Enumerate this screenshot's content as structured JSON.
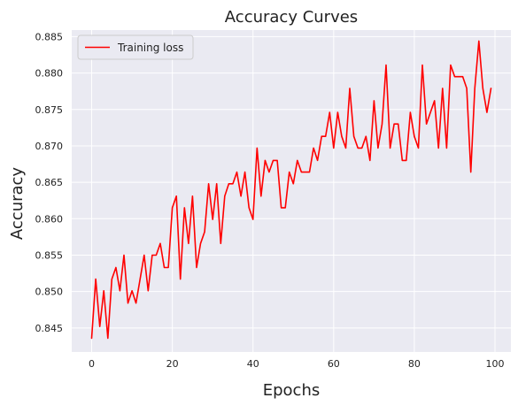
{
  "chart_data": {
    "type": "line",
    "title": "Accuracy Curves",
    "xlabel": "Epochs",
    "ylabel": "Accuracy",
    "xlim": [
      -4.95,
      103.95
    ],
    "ylim": [
      0.8417,
      0.8859
    ],
    "grid": true,
    "background": "#eaeaf2",
    "grid_color": "#ffffff",
    "legend_position": "top-left",
    "x_ticks": [
      0,
      20,
      40,
      60,
      80,
      100
    ],
    "x_tick_labels": [
      "0",
      "20",
      "40",
      "60",
      "80",
      "100"
    ],
    "y_ticks": [
      0.845,
      0.85,
      0.855,
      0.86,
      0.865,
      0.87,
      0.875,
      0.88,
      0.885
    ],
    "y_tick_labels": [
      "0.845",
      "0.850",
      "0.855",
      "0.860",
      "0.865",
      "0.870",
      "0.875",
      "0.880",
      "0.885"
    ],
    "series": [
      {
        "name": "Training loss",
        "color": "#ff0000",
        "x": [
          0,
          1,
          2,
          3,
          4,
          5,
          6,
          7,
          8,
          9,
          10,
          11,
          12,
          13,
          14,
          15,
          16,
          17,
          18,
          19,
          20,
          21,
          22,
          23,
          24,
          25,
          26,
          27,
          28,
          29,
          30,
          31,
          32,
          33,
          34,
          35,
          36,
          37,
          38,
          39,
          40,
          41,
          42,
          43,
          44,
          45,
          46,
          47,
          48,
          49,
          50,
          51,
          52,
          53,
          54,
          55,
          56,
          57,
          58,
          59,
          60,
          61,
          62,
          63,
          64,
          65,
          66,
          67,
          68,
          69,
          70,
          71,
          72,
          73,
          74,
          75,
          76,
          77,
          78,
          79,
          80,
          81,
          82,
          83,
          84,
          85,
          86,
          87,
          88,
          89,
          90,
          91,
          92,
          93,
          94,
          95,
          96,
          97,
          98,
          99
        ],
        "values": [
          0.8436,
          0.8517,
          0.8452,
          0.8501,
          0.8436,
          0.8517,
          0.8533,
          0.8501,
          0.855,
          0.8484,
          0.8501,
          0.8484,
          0.8517,
          0.855,
          0.8501,
          0.855,
          0.855,
          0.8566,
          0.8533,
          0.8533,
          0.8615,
          0.8631,
          0.8517,
          0.8615,
          0.8566,
          0.8631,
          0.8533,
          0.8566,
          0.8582,
          0.8648,
          0.8599,
          0.8648,
          0.8566,
          0.8631,
          0.8648,
          0.8648,
          0.8664,
          0.8631,
          0.8664,
          0.8615,
          0.8599,
          0.8697,
          0.8631,
          0.868,
          0.8664,
          0.868,
          0.868,
          0.8615,
          0.8615,
          0.8664,
          0.8648,
          0.868,
          0.8664,
          0.8664,
          0.8664,
          0.8697,
          0.868,
          0.8713,
          0.8713,
          0.8746,
          0.8697,
          0.8746,
          0.8713,
          0.8697,
          0.8779,
          0.8713,
          0.8697,
          0.8697,
          0.8713,
          0.868,
          0.8762,
          0.8697,
          0.873,
          0.8811,
          0.8697,
          0.873,
          0.873,
          0.868,
          0.868,
          0.8746,
          0.8713,
          0.8697,
          0.8811,
          0.873,
          0.8746,
          0.8762,
          0.8697,
          0.8779,
          0.8697,
          0.8811,
          0.8795,
          0.8795,
          0.8795,
          0.8779,
          0.8664,
          0.8779,
          0.8844,
          0.8779,
          0.8746,
          0.8779
        ]
      }
    ]
  }
}
